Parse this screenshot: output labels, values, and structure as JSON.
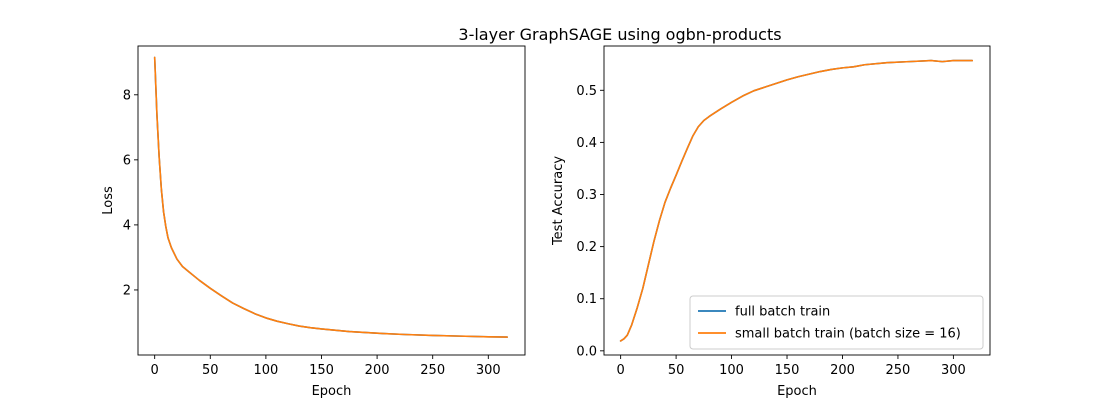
{
  "figure": {
    "title": "3-layer GraphSAGE using ogbn-products"
  },
  "chart_data": [
    {
      "type": "line",
      "title": "",
      "xlabel": "Epoch",
      "ylabel": "Loss",
      "xlim": [
        -15,
        333
      ],
      "ylim": [
        0.0,
        9.5
      ],
      "xticks": [
        0,
        50,
        100,
        150,
        200,
        250,
        300
      ],
      "yticks": [
        2,
        4,
        6,
        8
      ],
      "grid": false,
      "legend": null,
      "series": [
        {
          "name": "full batch train",
          "color": "#1f77b4",
          "x": [
            0,
            2,
            4,
            6,
            8,
            10,
            12,
            15,
            20,
            25,
            30,
            40,
            50,
            60,
            70,
            80,
            90,
            100,
            110,
            120,
            130,
            140,
            150,
            175,
            200,
            225,
            250,
            275,
            300,
            317
          ],
          "y": [
            9.15,
            7.4,
            6.1,
            5.1,
            4.4,
            3.95,
            3.6,
            3.3,
            2.95,
            2.72,
            2.58,
            2.3,
            2.05,
            1.82,
            1.6,
            1.43,
            1.27,
            1.14,
            1.04,
            0.96,
            0.89,
            0.84,
            0.8,
            0.72,
            0.67,
            0.63,
            0.6,
            0.58,
            0.56,
            0.55
          ]
        },
        {
          "name": "small batch train (batch size = 16)",
          "color": "#ff7f0e",
          "x": [
            0,
            2,
            4,
            6,
            8,
            10,
            12,
            15,
            20,
            25,
            30,
            40,
            50,
            60,
            70,
            80,
            90,
            100,
            110,
            120,
            130,
            140,
            150,
            175,
            200,
            225,
            250,
            275,
            300,
            317
          ],
          "y": [
            9.15,
            7.4,
            6.1,
            5.1,
            4.4,
            3.95,
            3.6,
            3.3,
            2.95,
            2.72,
            2.58,
            2.3,
            2.05,
            1.82,
            1.6,
            1.43,
            1.27,
            1.14,
            1.04,
            0.96,
            0.89,
            0.84,
            0.8,
            0.72,
            0.67,
            0.63,
            0.6,
            0.58,
            0.56,
            0.55
          ]
        }
      ]
    },
    {
      "type": "line",
      "title": "",
      "xlabel": "Epoch",
      "ylabel": "Test Accuracy",
      "xlim": [
        -15,
        333
      ],
      "ylim": [
        -0.008,
        0.585
      ],
      "xticks": [
        0,
        50,
        100,
        150,
        200,
        250,
        300
      ],
      "yticks": [
        0.0,
        0.1,
        0.2,
        0.3,
        0.4,
        0.5
      ],
      "grid": false,
      "legend": "lower-right",
      "series": [
        {
          "name": "full batch train",
          "color": "#1f77b4",
          "x": [
            0,
            3,
            6,
            10,
            15,
            20,
            25,
            30,
            35,
            40,
            45,
            50,
            55,
            60,
            65,
            70,
            75,
            80,
            90,
            100,
            110,
            120,
            130,
            140,
            150,
            160,
            170,
            180,
            190,
            200,
            210,
            220,
            240,
            260,
            280,
            290,
            300,
            317
          ],
          "y": [
            0.019,
            0.023,
            0.03,
            0.05,
            0.083,
            0.12,
            0.165,
            0.21,
            0.25,
            0.285,
            0.312,
            0.337,
            0.363,
            0.388,
            0.412,
            0.43,
            0.442,
            0.45,
            0.464,
            0.477,
            0.489,
            0.499,
            0.506,
            0.513,
            0.52,
            0.526,
            0.531,
            0.536,
            0.54,
            0.543,
            0.545,
            0.549,
            0.553,
            0.555,
            0.557,
            0.555,
            0.557,
            0.557
          ]
        },
        {
          "name": "small batch train (batch size = 16)",
          "color": "#ff7f0e",
          "x": [
            0,
            3,
            6,
            10,
            15,
            20,
            25,
            30,
            35,
            40,
            45,
            50,
            55,
            60,
            65,
            70,
            75,
            80,
            90,
            100,
            110,
            120,
            130,
            140,
            150,
            160,
            170,
            180,
            190,
            200,
            210,
            220,
            240,
            260,
            280,
            290,
            300,
            317
          ],
          "y": [
            0.019,
            0.023,
            0.03,
            0.05,
            0.083,
            0.12,
            0.165,
            0.21,
            0.25,
            0.285,
            0.312,
            0.337,
            0.363,
            0.388,
            0.412,
            0.43,
            0.442,
            0.45,
            0.464,
            0.477,
            0.489,
            0.499,
            0.506,
            0.513,
            0.52,
            0.526,
            0.531,
            0.536,
            0.54,
            0.543,
            0.545,
            0.549,
            0.553,
            0.555,
            0.557,
            0.555,
            0.557,
            0.557
          ]
        }
      ]
    }
  ]
}
